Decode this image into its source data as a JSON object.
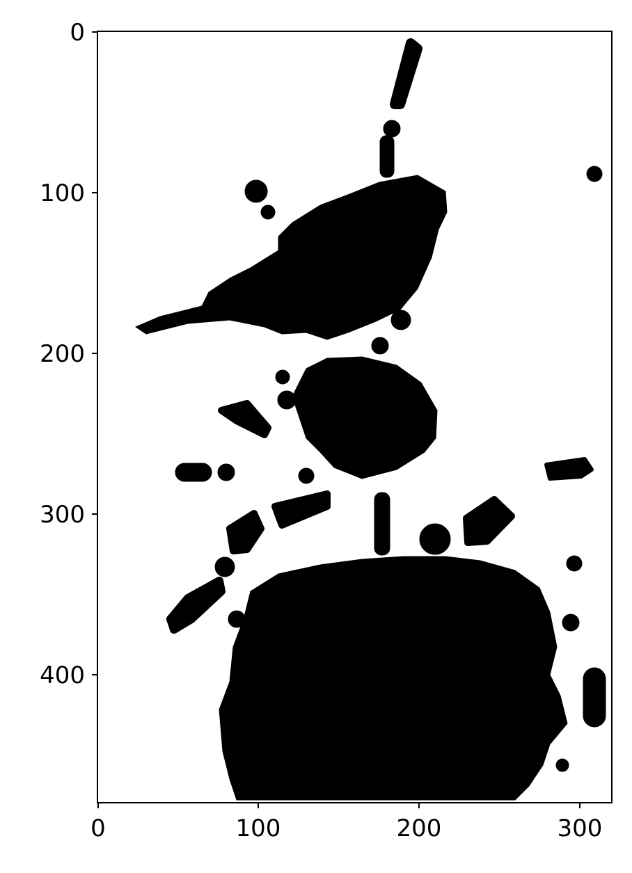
{
  "chart_data": {
    "type": "heatmap",
    "description_colors": {
      "foreground": "#000000",
      "background": "#ffffff"
    },
    "title": "",
    "xlabel": "",
    "ylabel": "",
    "xlim": [
      -0.5,
      319.5
    ],
    "ylim": [
      479.5,
      -0.5
    ],
    "x_ticks": [
      0,
      100,
      200,
      300
    ],
    "y_ticks": [
      0,
      100,
      200,
      300,
      400
    ],
    "x_tick_labels": [
      "0",
      "100",
      "200",
      "300"
    ],
    "y_tick_labels": [
      "0",
      "100",
      "200",
      "300",
      "400"
    ],
    "grid": false,
    "legend": "none",
    "colormap": "binary (black = 1, white = 0)"
  }
}
